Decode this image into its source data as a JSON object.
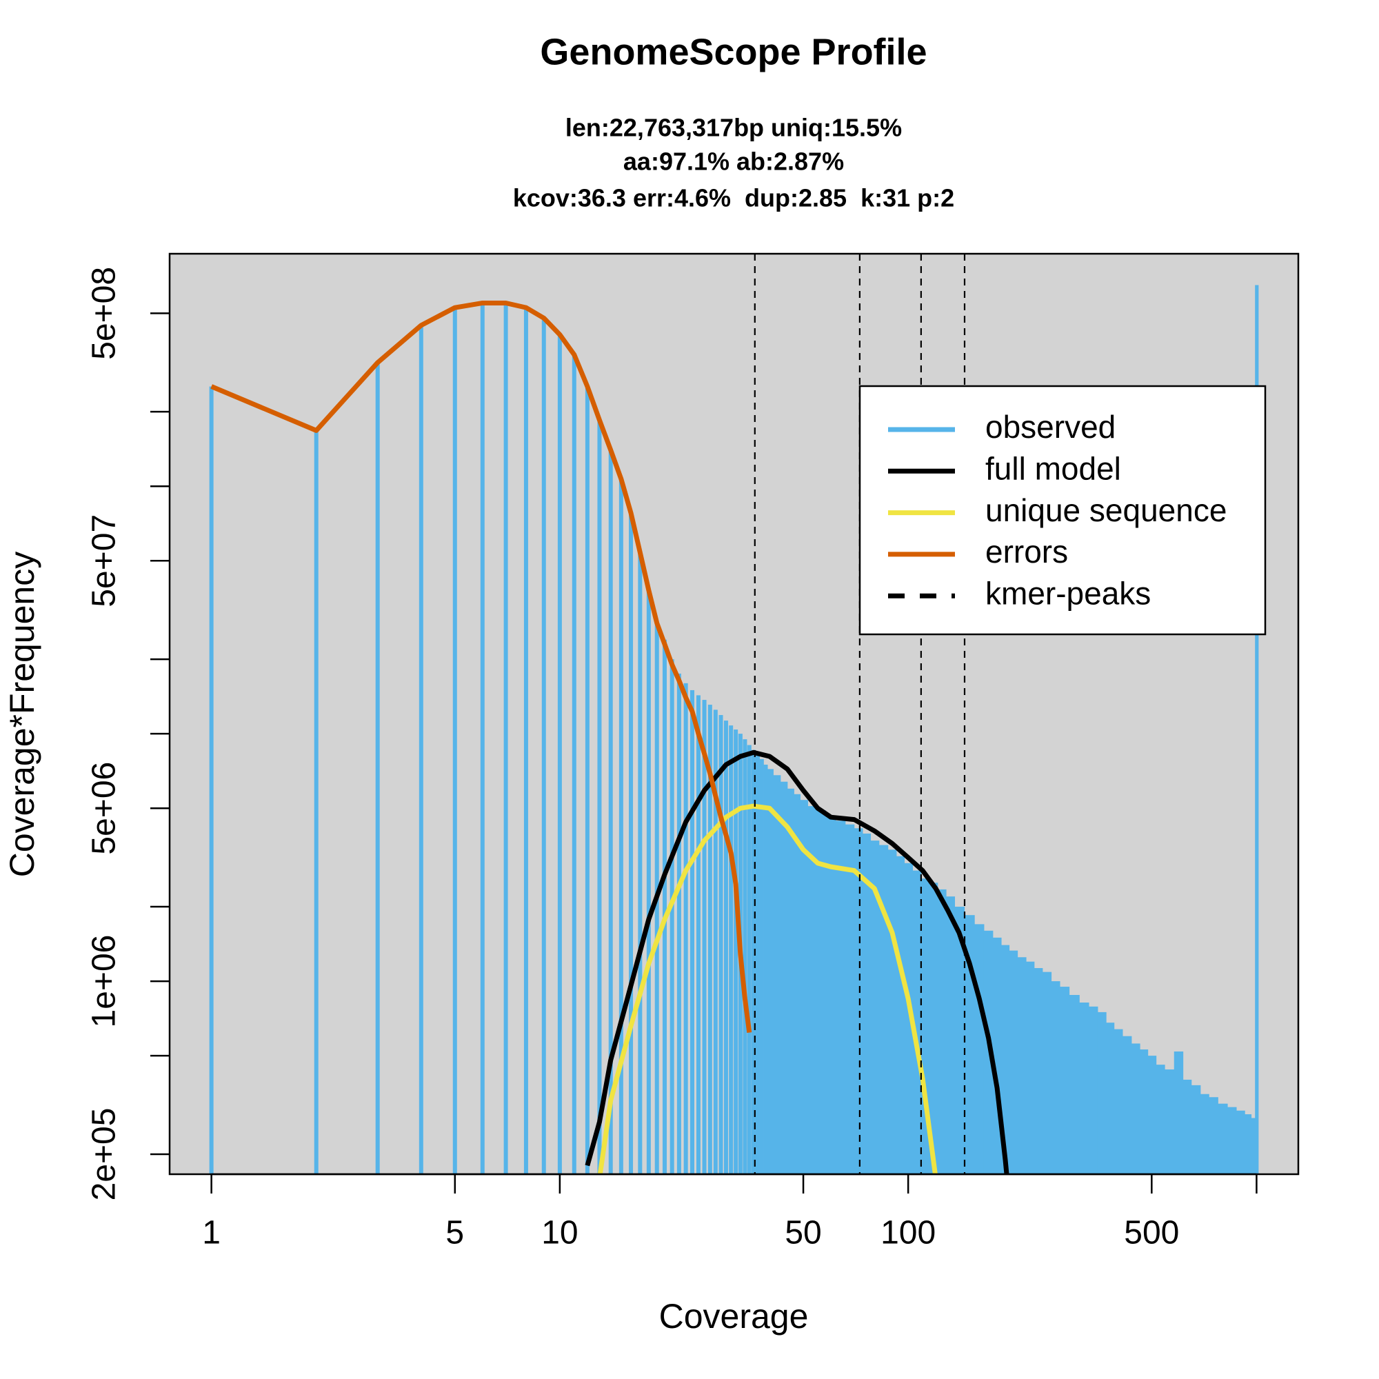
{
  "chart_data": {
    "type": "line",
    "title": "GenomeScope Profile",
    "subtitle": [
      "len:22,763,317bp uniq:15.5%",
      "aa:97.1% ab:2.87%",
      "kcov:36.3 err:4.6%  dup:2.85  k:31 p:2"
    ],
    "x_label": "Coverage",
    "y_label": "Coverage*Frequency",
    "x_log": true,
    "y_log": true,
    "xlim": [
      0.7586,
      1318
    ],
    "ylim": [
      166000,
      870000000
    ],
    "xticks": [
      1,
      5,
      10,
      50,
      100,
      500
    ],
    "xticks_minor": [
      1000
    ],
    "yticks": [
      {
        "value": 200000,
        "label": "2e+05"
      },
      {
        "value": 1000000,
        "label": "1e+06"
      },
      {
        "value": 5000000,
        "label": "5e+06"
      },
      {
        "value": 50000000,
        "label": "5e+07"
      },
      {
        "value": 500000000,
        "label": "5e+08"
      }
    ],
    "yticks_minor": [
      500000,
      2000000,
      10000000,
      20000000,
      100000000,
      200000000
    ],
    "background": "#d3d3d3",
    "legend": "topright",
    "series": [
      {
        "name": "observed",
        "color": "#56b4e9",
        "style": "bars",
        "x": [
          1,
          2,
          3,
          4,
          5,
          6,
          7,
          8,
          9,
          10,
          11,
          12,
          13,
          14,
          15,
          16,
          17,
          18,
          19,
          20,
          21,
          22,
          23,
          24,
          25,
          26,
          27,
          28,
          29,
          30,
          31,
          32,
          33,
          34,
          35,
          36,
          37,
          38,
          39,
          40,
          42,
          44,
          46,
          48,
          50,
          53,
          56,
          60,
          64,
          68,
          72,
          76,
          80,
          85,
          90,
          95,
          100,
          106,
          112,
          118,
          125,
          132,
          140,
          150,
          160,
          170,
          180,
          190,
          200,
          212,
          224,
          236,
          250,
          265,
          280,
          300,
          320,
          340,
          360,
          380,
          400,
          425,
          450,
          475,
          500,
          530,
          560,
          600,
          630,
          670,
          710,
          750,
          800,
          850,
          900,
          950,
          980,
          1000
        ],
        "values": [
          253000000.0,
          168000000.0,
          316000000.0,
          447000000.0,
          527000000.0,
          550000000.0,
          550000000.0,
          527000000.0,
          478000000.0,
          410000000.0,
          340000000.0,
          253000000.0,
          185000000.0,
          140000000.0,
          107000000.0,
          78000000.0,
          54000000.0,
          38000000.0,
          28000000.0,
          24000000.0,
          20000000.0,
          17500000.0,
          16000000.0,
          15000000.0,
          14300000.0,
          13700000.0,
          13100000.0,
          12500000.0,
          11900000.0,
          11300000.0,
          10800000.0,
          10400000.0,
          10000000.0,
          9500000.0,
          9000000.0,
          8600000.0,
          8200000.0,
          7900000.0,
          7500000.0,
          7200000.0,
          6800000.0,
          6400000.0,
          6000000.0,
          5700000.0,
          5400000.0,
          5100000.0,
          4900000.0,
          4600000.0,
          4450000.0,
          4300000.0,
          4150000.0,
          3950000.0,
          3700000.0,
          3550000.0,
          3400000.0,
          3200000.0,
          3000000.0,
          2800000.0,
          2600000.0,
          2500000.0,
          2350000.0,
          2200000.0,
          2000000.0,
          1850000.0,
          1700000.0,
          1600000.0,
          1500000.0,
          1400000.0,
          1330000.0,
          1250000.0,
          1200000.0,
          1130000.0,
          1090000.0,
          1000000.0,
          950000.0,
          880000.0,
          820000.0,
          790000.0,
          750000.0,
          680000.0,
          640000.0,
          600000.0,
          560000.0,
          530000.0,
          500000.0,
          460000.0,
          440000.0,
          520000.0,
          400000.0,
          380000.0,
          350000.0,
          340000.0,
          320000.0,
          310000.0,
          300000.0,
          290000.0,
          280000.0,
          650000000.0
        ]
      },
      {
        "name": "full model",
        "color": "#000000",
        "style": "line",
        "x": [
          12,
          13,
          14,
          16,
          18,
          20,
          23,
          26,
          30,
          33,
          36,
          40,
          45,
          50,
          55,
          60,
          70,
          80,
          90,
          100,
          110,
          120,
          130,
          140,
          150,
          160,
          170,
          180,
          190,
          195
        ],
        "values": [
          180000.0,
          270000.0,
          480000.0,
          960000.0,
          1780000.0,
          2700000.0,
          4400000.0,
          5900000.0,
          7500000.0,
          8100000.0,
          8400000.0,
          8100000.0,
          7200000.0,
          5900000.0,
          5000000.0,
          4600000.0,
          4500000.0,
          4050000.0,
          3600000.0,
          3160000.0,
          2800000.0,
          2370000.0,
          1930000.0,
          1570000.0,
          1180000.0,
          850000.0,
          590000.0,
          370000.0,
          190000.0,
          130000.0
        ]
      },
      {
        "name": "unique sequence",
        "color": "#f0e442",
        "style": "line",
        "x": [
          13,
          14,
          16,
          18,
          20,
          23,
          26,
          30,
          33,
          36,
          40,
          45,
          50,
          55,
          60,
          70,
          80,
          90,
          100,
          110,
          120
        ],
        "values": [
          160000.0,
          330000.0,
          660000.0,
          1180000.0,
          1780000.0,
          2800000.0,
          3700000.0,
          4600000.0,
          5000000.0,
          5100000.0,
          5000000.0,
          4200000.0,
          3400000.0,
          3000000.0,
          2900000.0,
          2800000.0,
          2370000.0,
          1570000.0,
          850000.0,
          405000.0,
          160000.0
        ]
      },
      {
        "name": "errors",
        "color": "#d55e00",
        "style": "line",
        "x": [
          1,
          2,
          3,
          4,
          5,
          6,
          7,
          8,
          9,
          10,
          11,
          12,
          13,
          14,
          15,
          16,
          17,
          18,
          19,
          20,
          21,
          22,
          23,
          24,
          25,
          26,
          27,
          28,
          29,
          30,
          31,
          32,
          33,
          34,
          35
        ],
        "values": [
          253000000.0,
          168000000.0,
          316000000.0,
          447000000.0,
          527000000.0,
          550000000.0,
          550000000.0,
          527000000.0,
          478000000.0,
          410000000.0,
          340000000.0,
          253000000.0,
          185000000.0,
          140000000.0,
          107000000.0,
          78000000.0,
          54000000.0,
          38000000.0,
          28000000.0,
          23000000.0,
          19000000.0,
          16400000.0,
          14000000.0,
          12300000.0,
          10000000.0,
          8300000.0,
          6900000.0,
          5600000.0,
          4600000.0,
          3900000.0,
          3300000.0,
          2470000.0,
          1280000.0,
          850000.0,
          620000.0
        ]
      }
    ],
    "kmer_peaks": {
      "name": "kmer-peaks",
      "color": "#000000",
      "values": [
        36.3,
        72.6,
        108.9,
        145.2
      ]
    }
  }
}
